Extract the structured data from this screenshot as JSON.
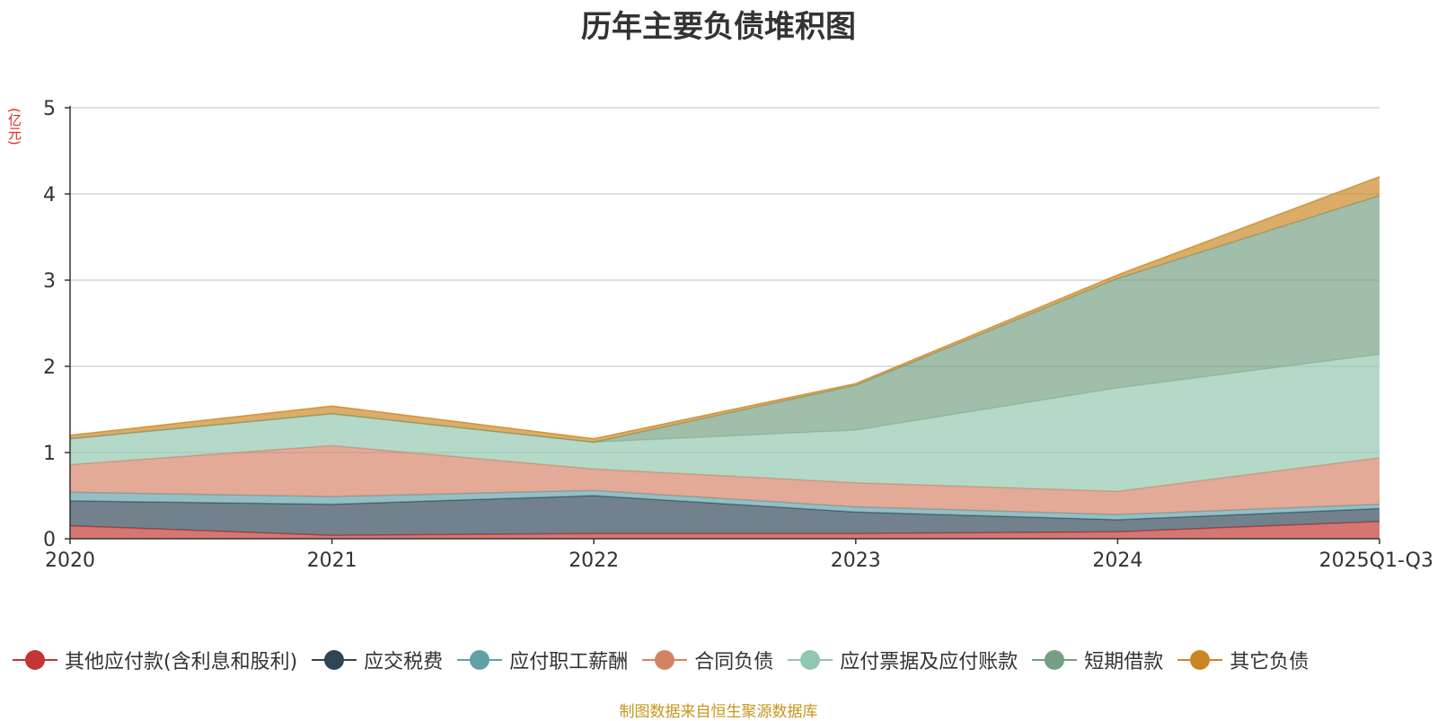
{
  "chart_data": {
    "type": "area",
    "stacked": true,
    "title": "历年主要负债堆积图",
    "ylabel": "(亿元)",
    "xlabel": "",
    "categories": [
      "2020",
      "2021",
      "2022",
      "2023",
      "2024",
      "2025Q1-Q3"
    ],
    "ylim": [
      0,
      5
    ],
    "yticks": [
      0,
      1,
      2,
      3,
      4,
      5
    ],
    "grid": true,
    "legend_position": "bottom",
    "series": [
      {
        "name": "其他应付款(含利息和股利)",
        "color": "#c23531",
        "values": [
          0.15,
          0.04,
          0.06,
          0.06,
          0.08,
          0.2
        ]
      },
      {
        "name": "应交税费",
        "color": "#2f4554",
        "values": [
          0.29,
          0.36,
          0.44,
          0.25,
          0.14,
          0.15
        ]
      },
      {
        "name": "应付职工薪酬",
        "color": "#61a0a8",
        "values": [
          0.1,
          0.09,
          0.06,
          0.06,
          0.06,
          0.05
        ]
      },
      {
        "name": "合同负债",
        "color": "#d48265",
        "values": [
          0.32,
          0.59,
          0.25,
          0.28,
          0.27,
          0.54
        ]
      },
      {
        "name": "应付票据及应付账款",
        "color": "#91c7ae",
        "values": [
          0.3,
          0.37,
          0.31,
          0.61,
          1.2,
          1.2
        ]
      },
      {
        "name": "短期借款",
        "color": "#749f83",
        "values": [
          0,
          0,
          0,
          0.52,
          1.27,
          1.84
        ]
      },
      {
        "name": "其它负债",
        "color": "#ca8622",
        "values": [
          0.04,
          0.09,
          0.04,
          0.02,
          0.04,
          0.22
        ]
      }
    ]
  },
  "footer": {
    "source": "制图数据来自恒生聚源数据库"
  }
}
